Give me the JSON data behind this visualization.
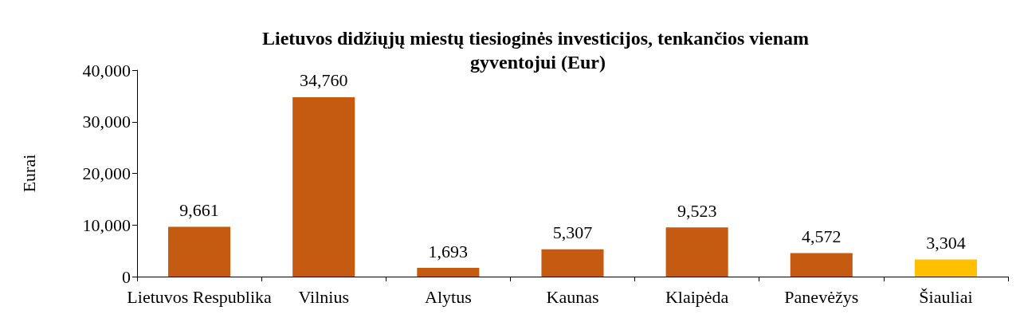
{
  "chart_data": {
    "type": "bar",
    "title": "Lietuvos didžiųjų miestų tiesioginės investicijos, tenkančios vienam gyventojui (Eur)",
    "ylabel": "Eurai",
    "categories": [
      "Lietuvos Respublika",
      "Vilnius",
      "Alytus",
      "Kaunas",
      "Klaipėda",
      "Panevėžys",
      "Šiauliai"
    ],
    "values": [
      9661,
      34760,
      1693,
      5307,
      9523,
      4572,
      3304
    ],
    "value_labels": [
      "9,661",
      "34,760",
      "1,693",
      "5,307",
      "9,523",
      "4,572",
      "3,304"
    ],
    "colors": [
      "#c55a11",
      "#c55a11",
      "#c55a11",
      "#c55a11",
      "#c55a11",
      "#c55a11",
      "#ffc000"
    ],
    "ylim": [
      0,
      40000
    ],
    "yticks": [
      {
        "value": 0,
        "label": "0"
      },
      {
        "value": 10000,
        "label": "10,000"
      },
      {
        "value": 20000,
        "label": "20,000"
      },
      {
        "value": 30000,
        "label": "30,000"
      },
      {
        "value": 40000,
        "label": "40,000"
      }
    ],
    "grid": false
  }
}
